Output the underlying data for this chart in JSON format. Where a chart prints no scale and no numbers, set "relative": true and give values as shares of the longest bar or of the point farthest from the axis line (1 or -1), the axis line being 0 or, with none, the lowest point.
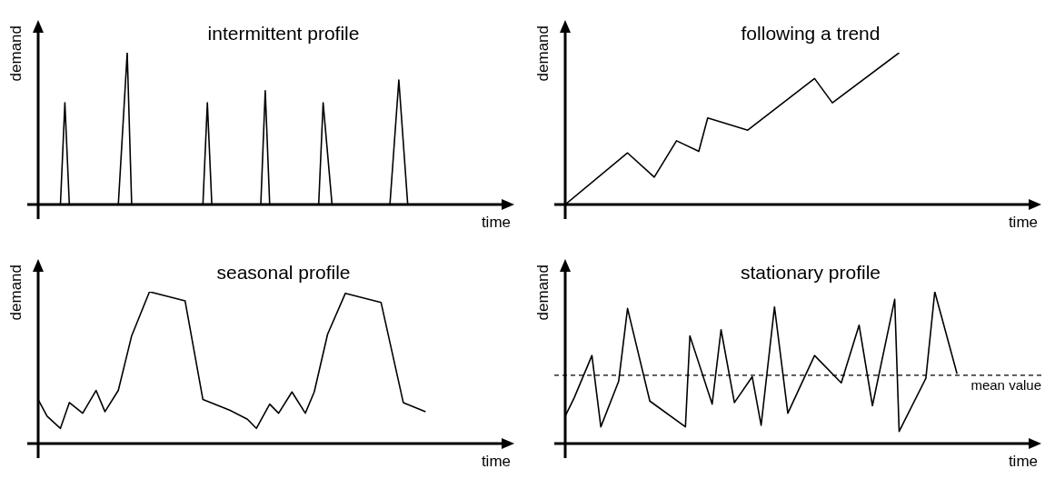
{
  "chart_data": [
    {
      "type": "line",
      "title": "intermittent profile",
      "xlabel": "time",
      "ylabel": "demand",
      "relative": true,
      "legend": false,
      "marker": "none",
      "categories": [
        null,
        null,
        null,
        null,
        null,
        null,
        null,
        null,
        null,
        null,
        null,
        null,
        null,
        null,
        null,
        null,
        null,
        null,
        null,
        null,
        null,
        null,
        null,
        null,
        null,
        null,
        null,
        null,
        null,
        null,
        null,
        null,
        null,
        null,
        null,
        null,
        null,
        null,
        null,
        null,
        null,
        null,
        null,
        null,
        null,
        null,
        null,
        null,
        null,
        null,
        null,
        null,
        null,
        null,
        null,
        null,
        null,
        null,
        null,
        null,
        null,
        null,
        null,
        null,
        null,
        null,
        null,
        null,
        null,
        null,
        null,
        null,
        null,
        null,
        null,
        null,
        null,
        null,
        null,
        null,
        null,
        null,
        null,
        null,
        null,
        null,
        null,
        null,
        null,
        null,
        null,
        null,
        null,
        null,
        null,
        null,
        null,
        null,
        null,
        null,
        null
      ],
      "series": [
        {
          "color": "#000000",
          "values": [
            null,
            null,
            null,
            null,
            null,
            0,
            0.67,
            0,
            null,
            null,
            null,
            null,
            null,
            null,
            null,
            null,
            null,
            null,
            0,
            null,
            1,
            0,
            null,
            null,
            null,
            null,
            null,
            null,
            null,
            null,
            null,
            null,
            null,
            null,
            null,
            null,
            null,
            0,
            0.67,
            0,
            null,
            null,
            null,
            null,
            null,
            null,
            null,
            null,
            null,
            null,
            0,
            0.75,
            0,
            null,
            null,
            null,
            null,
            null,
            null,
            null,
            null,
            null,
            null,
            0,
            0.67,
            null,
            0,
            null,
            null,
            null,
            null,
            null,
            null,
            null,
            null,
            null,
            null,
            null,
            null,
            0,
            null,
            0.82,
            null,
            0,
            null,
            null,
            null,
            null,
            null,
            null,
            null,
            null,
            null,
            null,
            null,
            null,
            null,
            null,
            null,
            null,
            null
          ]
        }
      ]
    },
    {
      "type": "line",
      "title": "following a trend",
      "xlabel": "time",
      "ylabel": "demand",
      "relative": true,
      "legend": false,
      "marker": "none",
      "categories": [
        null,
        null,
        null,
        null,
        null,
        null,
        null,
        null,
        null,
        null,
        null,
        null,
        null,
        null,
        null,
        null,
        null,
        null,
        null,
        null,
        null,
        null,
        null,
        null,
        null,
        null,
        null,
        null,
        null,
        null,
        null,
        null,
        null,
        null,
        null,
        null,
        null,
        null,
        null,
        null,
        null,
        null,
        null,
        null,
        null,
        null,
        null,
        null,
        null,
        null,
        null,
        null,
        null,
        null,
        null,
        null,
        null,
        null,
        null,
        null,
        null,
        null,
        null,
        null,
        null,
        null,
        null,
        null,
        null,
        null,
        null,
        null,
        null,
        null,
        null,
        null,
        null,
        null,
        null,
        null,
        null,
        null,
        null,
        null,
        null,
        null,
        null,
        null,
        null,
        null,
        null,
        null,
        null,
        null,
        null,
        null,
        null,
        null,
        null,
        null,
        null
      ],
      "series": [
        {
          "color": "#000000",
          "values": [
            0,
            null,
            null,
            null,
            null,
            null,
            null,
            null,
            null,
            null,
            null,
            null,
            null,
            null,
            0.34,
            null,
            null,
            null,
            null,
            null,
            0.18,
            null,
            null,
            null,
            null,
            0.42,
            null,
            null,
            null,
            null,
            0.35,
            null,
            0.57,
            null,
            null,
            null,
            null,
            null,
            null,
            null,
            null,
            0.49,
            null,
            null,
            null,
            null,
            null,
            null,
            null,
            null,
            null,
            null,
            null,
            null,
            null,
            null,
            0.83,
            null,
            null,
            null,
            0.67,
            null,
            null,
            null,
            null,
            null,
            null,
            null,
            null,
            null,
            null,
            null,
            null,
            null,
            null,
            1,
            null,
            null,
            null,
            null,
            null,
            null,
            null,
            null,
            null,
            null,
            null,
            null,
            null,
            null,
            null,
            null,
            null,
            null,
            null,
            null,
            null,
            null,
            null,
            null,
            null
          ]
        }
      ]
    },
    {
      "type": "line",
      "title": "seasonal profile",
      "xlabel": "time",
      "ylabel": "demand",
      "relative": true,
      "legend": false,
      "marker": "none",
      "categories": [
        null,
        null,
        null,
        null,
        null,
        null,
        null,
        null,
        null,
        null,
        null,
        null,
        null,
        null,
        null,
        null,
        null,
        null,
        null,
        null,
        null,
        null,
        null,
        null,
        null,
        null,
        null,
        null,
        null,
        null,
        null,
        null,
        null,
        null,
        null,
        null,
        null,
        null,
        null,
        null,
        null,
        null,
        null,
        null,
        null,
        null,
        null,
        null,
        null,
        null,
        null,
        null,
        null,
        null,
        null,
        null,
        null,
        null,
        null,
        null,
        null,
        null,
        null,
        null,
        null,
        null,
        null,
        null,
        null,
        null,
        null,
        null,
        null,
        null,
        null,
        null,
        null,
        null,
        null,
        null,
        null,
        null,
        null,
        null,
        null,
        null,
        null,
        null,
        null,
        null,
        null,
        null,
        null,
        null,
        null,
        null,
        null,
        null,
        null,
        null,
        null
      ],
      "series": [
        {
          "color": "#000000",
          "values": [
            0.29,
            null,
            0.18,
            null,
            null,
            0.1,
            null,
            0.27,
            null,
            null,
            0.2,
            null,
            null,
            0.35,
            null,
            0.21,
            null,
            null,
            0.35,
            null,
            null,
            0.71,
            null,
            null,
            null,
            1,
            null,
            null,
            null,
            null,
            null,
            null,
            null,
            0.94,
            null,
            null,
            null,
            0.29,
            null,
            null,
            null,
            null,
            null,
            0.22,
            null,
            null,
            null,
            0.16,
            null,
            0.1,
            null,
            null,
            0.26,
            null,
            0.2,
            null,
            null,
            0.34,
            null,
            null,
            0.2,
            null,
            0.34,
            null,
            null,
            0.72,
            null,
            null,
            null,
            0.99,
            null,
            null,
            null,
            null,
            null,
            null,
            null,
            0.93,
            null,
            null,
            null,
            null,
            0.27,
            null,
            null,
            null,
            null,
            0.21,
            null,
            null,
            null,
            null,
            null,
            null,
            null,
            null,
            null,
            null,
            null,
            null,
            null
          ]
        }
      ]
    },
    {
      "type": "line",
      "title": "stationary profile",
      "xlabel": "time",
      "ylabel": "demand",
      "relative": true,
      "legend": false,
      "marker": "none",
      "categories": [
        null,
        null,
        null,
        null,
        null,
        null,
        null,
        null,
        null,
        null,
        null,
        null,
        null,
        null,
        null,
        null,
        null,
        null,
        null,
        null,
        null,
        null,
        null,
        null,
        null,
        null,
        null,
        null,
        null,
        null,
        null,
        null,
        null,
        null,
        null,
        null,
        null,
        null,
        null,
        null,
        null,
        null,
        null,
        null,
        null,
        null,
        null,
        null,
        null,
        null,
        null,
        null,
        null,
        null,
        null,
        null,
        null,
        null,
        null,
        null,
        null,
        null,
        null,
        null,
        null,
        null,
        null,
        null,
        null,
        null,
        null,
        null,
        null,
        null,
        null,
        null,
        null,
        null,
        null,
        null,
        null,
        null,
        null,
        null,
        null,
        null,
        null,
        null,
        null,
        null,
        null,
        null,
        null,
        null,
        null,
        null,
        null,
        null,
        null,
        null,
        null
      ],
      "series": [
        {
          "color": "#000000",
          "values": [
            0.18,
            null,
            0.3,
            null,
            null,
            null,
            0.58,
            null,
            0.11,
            null,
            null,
            null,
            0.41,
            null,
            0.89,
            null,
            null,
            null,
            null,
            0.28,
            null,
            null,
            null,
            null,
            null,
            null,
            null,
            0.11,
            0.71,
            null,
            null,
            null,
            null,
            0.26,
            null,
            0.75,
            null,
            null,
            0.27,
            null,
            null,
            null,
            0.44,
            null,
            0.12,
            null,
            null,
            0.9,
            null,
            null,
            0.2,
            null,
            null,
            null,
            null,
            null,
            0.58,
            null,
            null,
            null,
            null,
            null,
            0.4,
            null,
            null,
            null,
            0.78,
            null,
            null,
            0.25,
            null,
            null,
            null,
            null,
            0.95,
            0.08,
            null,
            null,
            null,
            null,
            null,
            0.43,
            null,
            1,
            null,
            null,
            null,
            null,
            0.46,
            null,
            null,
            null,
            null,
            null,
            null,
            null,
            null,
            null,
            null,
            null,
            null
          ]
        }
      ],
      "ref_lines": [
        {
          "axis": "y",
          "value": 0.45,
          "label": "mean value",
          "color": "#000000",
          "line_style": "dashed"
        }
      ]
    }
  ]
}
